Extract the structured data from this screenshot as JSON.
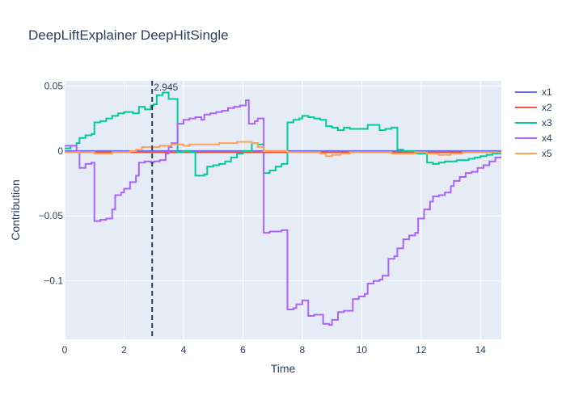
{
  "chart_data": {
    "type": "line",
    "title": "DeepLiftExplainer DeepHitSingle",
    "xlabel": "Time",
    "ylabel": "Contribution",
    "xlim": [
      0,
      14.7
    ],
    "ylim": [
      -0.145,
      0.054
    ],
    "xticks": [
      0,
      2,
      4,
      6,
      8,
      10,
      12,
      14
    ],
    "yticks": [
      {
        "value": 0.05,
        "label": "0.05"
      },
      {
        "value": 0,
        "label": "0"
      },
      {
        "value": -0.05,
        "label": "−0.05"
      },
      {
        "value": -0.1,
        "label": "−0.1"
      }
    ],
    "grid": true,
    "legend": "right",
    "step": true,
    "vline": {
      "x": 2.945,
      "label": "2.945",
      "color": "#2a3f5f"
    },
    "series": [
      {
        "name": "x1",
        "color": "#636efa",
        "points": [
          [
            0,
            0
          ],
          [
            14.7,
            0
          ]
        ]
      },
      {
        "name": "x2",
        "color": "#ef553b",
        "points": [
          [
            0,
            -0.001
          ],
          [
            1,
            -0.001
          ],
          [
            2,
            -0.001
          ],
          [
            3,
            -0.001
          ],
          [
            4,
            -0.001
          ],
          [
            6,
            -0.001
          ],
          [
            8,
            -0.001
          ],
          [
            10,
            -0.001
          ],
          [
            12,
            -0.001
          ],
          [
            14.7,
            -0.001
          ]
        ]
      },
      {
        "name": "x3",
        "color": "#00cc96",
        "points": [
          [
            0,
            0.002
          ],
          [
            0.2,
            0.004
          ],
          [
            0.4,
            0.006
          ],
          [
            0.5,
            0.01
          ],
          [
            0.7,
            0.012
          ],
          [
            0.9,
            0.013
          ],
          [
            1,
            0.022
          ],
          [
            1.2,
            0.023
          ],
          [
            1.4,
            0.025
          ],
          [
            1.6,
            0.027
          ],
          [
            1.8,
            0.029
          ],
          [
            2,
            0.03
          ],
          [
            2.2,
            0.03
          ],
          [
            2.3,
            0.029
          ],
          [
            2.5,
            0.034
          ],
          [
            2.7,
            0.032
          ],
          [
            2.9,
            0.035
          ],
          [
            3.0,
            0.036
          ],
          [
            3.1,
            0.043
          ],
          [
            3.3,
            0.045
          ],
          [
            3.5,
            0.04
          ],
          [
            3.7,
            0.04
          ],
          [
            3.8,
            -0.001
          ],
          [
            4.0,
            0.0
          ],
          [
            4.2,
            -0.001
          ],
          [
            4.4,
            -0.019
          ],
          [
            4.7,
            -0.018
          ],
          [
            4.8,
            -0.012
          ],
          [
            5.0,
            -0.011
          ],
          [
            5.2,
            -0.01
          ],
          [
            5.4,
            -0.008
          ],
          [
            5.6,
            -0.005
          ],
          [
            5.8,
            -0.002
          ],
          [
            6.0,
            0.0
          ],
          [
            6.3,
            0.006
          ],
          [
            6.5,
            0.005
          ],
          [
            6.7,
            -0.017
          ],
          [
            6.9,
            -0.015
          ],
          [
            7.1,
            -0.012
          ],
          [
            7.3,
            -0.01
          ],
          [
            7.5,
            0.022
          ],
          [
            7.7,
            0.024
          ],
          [
            7.9,
            0.025
          ],
          [
            8.0,
            0.027
          ],
          [
            8.2,
            0.026
          ],
          [
            8.4,
            0.025
          ],
          [
            8.6,
            0.024
          ],
          [
            8.8,
            0.019
          ],
          [
            9.0,
            0.018
          ],
          [
            9.2,
            0.016
          ],
          [
            9.4,
            0.018
          ],
          [
            9.6,
            0.017
          ],
          [
            9.8,
            0.017
          ],
          [
            10.0,
            0.017
          ],
          [
            10.2,
            0.02
          ],
          [
            10.4,
            0.02
          ],
          [
            10.6,
            0.016
          ],
          [
            10.8,
            0.017
          ],
          [
            11.0,
            0.018
          ],
          [
            11.2,
            0.001
          ],
          [
            11.4,
            0.0
          ],
          [
            11.8,
            -0.002
          ],
          [
            12.0,
            -0.002
          ],
          [
            12.2,
            -0.009
          ],
          [
            12.4,
            -0.01
          ],
          [
            12.6,
            -0.009
          ],
          [
            12.8,
            -0.008
          ],
          [
            13.0,
            -0.008
          ],
          [
            13.2,
            -0.007
          ],
          [
            13.4,
            -0.007
          ],
          [
            13.6,
            -0.006
          ],
          [
            13.8,
            -0.005
          ],
          [
            14.0,
            -0.004
          ],
          [
            14.2,
            -0.003
          ],
          [
            14.4,
            -0.002
          ],
          [
            14.7,
            -0.002
          ]
        ]
      },
      {
        "name": "x4",
        "color": "#ab63fa",
        "points": [
          [
            0,
            0.004
          ],
          [
            0.4,
            0.0
          ],
          [
            0.5,
            -0.013
          ],
          [
            0.7,
            -0.01
          ],
          [
            0.9,
            -0.009
          ],
          [
            1.0,
            -0.054
          ],
          [
            1.2,
            -0.053
          ],
          [
            1.4,
            -0.052
          ],
          [
            1.6,
            -0.045
          ],
          [
            1.7,
            -0.034
          ],
          [
            1.9,
            -0.032
          ],
          [
            2.0,
            -0.029
          ],
          [
            2.2,
            -0.024
          ],
          [
            2.4,
            -0.019
          ],
          [
            2.5,
            -0.009
          ],
          [
            2.7,
            -0.008
          ],
          [
            2.9,
            -0.009
          ],
          [
            3.0,
            -0.008
          ],
          [
            3.2,
            -0.007
          ],
          [
            3.4,
            -0.002
          ],
          [
            3.5,
            0.003
          ],
          [
            3.6,
            0.006
          ],
          [
            3.8,
            0.021
          ],
          [
            4.0,
            0.024
          ],
          [
            4.2,
            0.025
          ],
          [
            4.4,
            0.026
          ],
          [
            4.6,
            0.024
          ],
          [
            4.7,
            0.028
          ],
          [
            4.9,
            0.029
          ],
          [
            5.1,
            0.03
          ],
          [
            5.3,
            0.031
          ],
          [
            5.5,
            0.033
          ],
          [
            5.7,
            0.034
          ],
          [
            5.9,
            0.035
          ],
          [
            6.1,
            0.039
          ],
          [
            6.2,
            0.021
          ],
          [
            6.4,
            0.023
          ],
          [
            6.5,
            0.025
          ],
          [
            6.7,
            -0.063
          ],
          [
            6.9,
            -0.062
          ],
          [
            7.1,
            -0.062
          ],
          [
            7.3,
            -0.061
          ],
          [
            7.5,
            -0.122
          ],
          [
            7.7,
            -0.121
          ],
          [
            7.8,
            -0.118
          ],
          [
            8.0,
            -0.115
          ],
          [
            8.2,
            -0.127
          ],
          [
            8.4,
            -0.126
          ],
          [
            8.6,
            -0.126
          ],
          [
            8.7,
            -0.133
          ],
          [
            8.9,
            -0.134
          ],
          [
            9.0,
            -0.13
          ],
          [
            9.2,
            -0.124
          ],
          [
            9.4,
            -0.123
          ],
          [
            9.6,
            -0.123
          ],
          [
            9.7,
            -0.114
          ],
          [
            9.9,
            -0.112
          ],
          [
            10.1,
            -0.11
          ],
          [
            10.2,
            -0.102
          ],
          [
            10.4,
            -0.1
          ],
          [
            10.6,
            -0.099
          ],
          [
            10.7,
            -0.096
          ],
          [
            10.9,
            -0.083
          ],
          [
            11.1,
            -0.081
          ],
          [
            11.2,
            -0.075
          ],
          [
            11.4,
            -0.068
          ],
          [
            11.6,
            -0.065
          ],
          [
            11.8,
            -0.063
          ],
          [
            11.9,
            -0.052
          ],
          [
            12.1,
            -0.045
          ],
          [
            12.3,
            -0.039
          ],
          [
            12.4,
            -0.035
          ],
          [
            12.6,
            -0.034
          ],
          [
            12.8,
            -0.032
          ],
          [
            13.0,
            -0.027
          ],
          [
            13.1,
            -0.023
          ],
          [
            13.3,
            -0.02
          ],
          [
            13.5,
            -0.017
          ],
          [
            13.7,
            -0.016
          ],
          [
            13.9,
            -0.013
          ],
          [
            14.1,
            -0.011
          ],
          [
            14.3,
            -0.008
          ],
          [
            14.5,
            -0.005
          ],
          [
            14.7,
            -0.004
          ]
        ]
      },
      {
        "name": "x5",
        "color": "#ffa15a",
        "points": [
          [
            0,
            -0.001
          ],
          [
            1,
            -0.002
          ],
          [
            1.4,
            -0.002
          ],
          [
            1.6,
            -0.001
          ],
          [
            2,
            -0.001
          ],
          [
            2.2,
            0.0
          ],
          [
            2.4,
            0.001
          ],
          [
            2.5,
            0.001
          ],
          [
            2.6,
            0.003
          ],
          [
            2.8,
            0.003
          ],
          [
            3.0,
            0.003
          ],
          [
            3.2,
            0.004
          ],
          [
            3.4,
            0.004
          ],
          [
            3.6,
            0.005
          ],
          [
            3.8,
            0.005
          ],
          [
            4.0,
            0.004
          ],
          [
            4.2,
            0.005
          ],
          [
            4.4,
            0.005
          ],
          [
            4.6,
            0.005
          ],
          [
            4.8,
            0.005
          ],
          [
            5.0,
            0.005
          ],
          [
            5.2,
            0.006
          ],
          [
            5.4,
            0.006
          ],
          [
            5.6,
            0.006
          ],
          [
            5.8,
            0.007
          ],
          [
            6.0,
            0.007
          ],
          [
            6.3,
            0.006
          ],
          [
            6.5,
            0.003
          ],
          [
            6.7,
            0.0
          ],
          [
            7.0,
            0.0
          ],
          [
            7.5,
            -0.001
          ],
          [
            8.0,
            -0.001
          ],
          [
            8.6,
            -0.002
          ],
          [
            8.8,
            -0.004
          ],
          [
            9.0,
            -0.003
          ],
          [
            9.3,
            -0.002
          ],
          [
            9.6,
            -0.001
          ],
          [
            10.0,
            -0.001
          ],
          [
            10.6,
            -0.001
          ],
          [
            11.0,
            -0.002
          ],
          [
            11.4,
            -0.002
          ],
          [
            11.8,
            -0.001
          ],
          [
            12.2,
            -0.002
          ],
          [
            12.6,
            -0.003
          ],
          [
            13.0,
            -0.002
          ],
          [
            13.4,
            -0.001
          ],
          [
            14.0,
            -0.001
          ],
          [
            14.7,
            -0.001
          ]
        ]
      }
    ]
  }
}
